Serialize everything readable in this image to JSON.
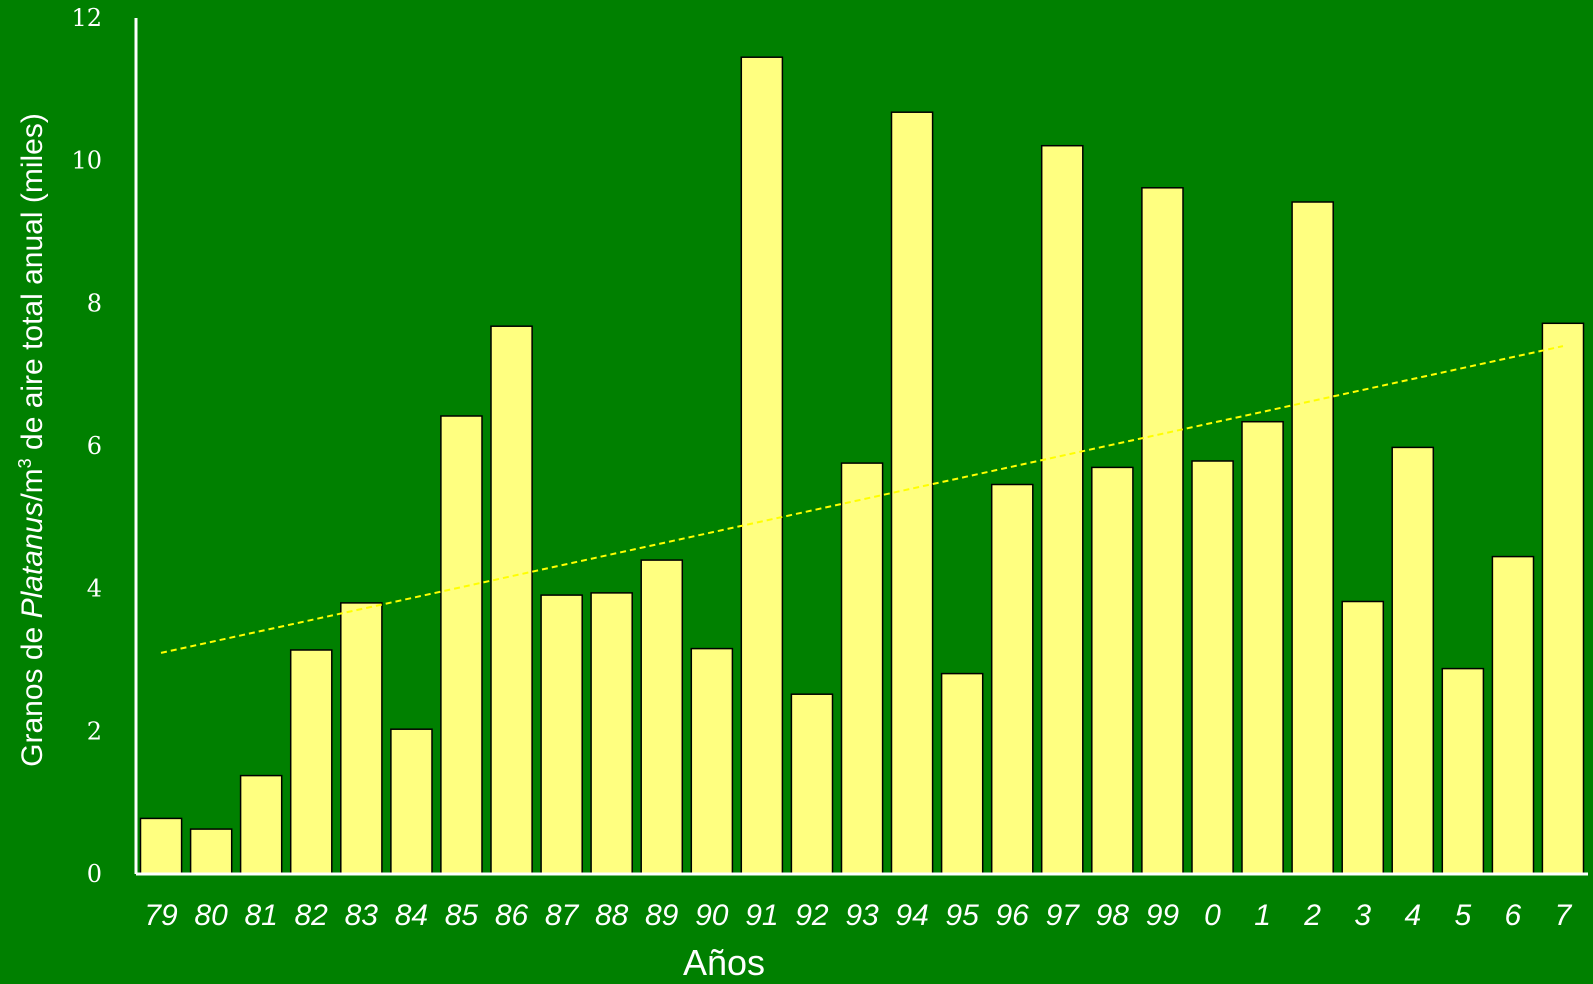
{
  "chart_data": {
    "type": "bar",
    "categories": [
      "79",
      "80",
      "81",
      "82",
      "83",
      "84",
      "85",
      "86",
      "87",
      "88",
      "89",
      "90",
      "91",
      "92",
      "93",
      "94",
      "95",
      "96",
      "97",
      "98",
      "99",
      "0",
      "1",
      "2",
      "3",
      "4",
      "5",
      "6",
      "7"
    ],
    "values": [
      0.78,
      0.63,
      1.38,
      3.14,
      3.8,
      2.03,
      6.42,
      7.68,
      3.91,
      3.94,
      4.4,
      3.16,
      11.45,
      2.52,
      5.76,
      10.68,
      2.81,
      5.46,
      10.21,
      5.7,
      9.62,
      5.79,
      6.34,
      9.42,
      3.82,
      5.98,
      2.88,
      4.45,
      7.72
    ],
    "title": "",
    "xlabel": "Años",
    "ylabel": {
      "prefix": "Granos de ",
      "italic": "Platanus",
      "mid": "/m",
      "sup": "3",
      "suffix": " de aire total anual (miles)"
    },
    "yticks": [
      "0",
      "2",
      "4",
      "6",
      "8",
      "10",
      "12"
    ],
    "ylim": [
      0,
      12
    ],
    "trendline": {
      "style": "dashed",
      "start": 3.1,
      "end": 7.4
    },
    "grid": false,
    "legend": "none",
    "colors": {
      "background": "#008000",
      "bar": "#ffff80",
      "bar_edge": "#000000",
      "axis": "#ffffff",
      "trend": "#ffff00"
    }
  }
}
